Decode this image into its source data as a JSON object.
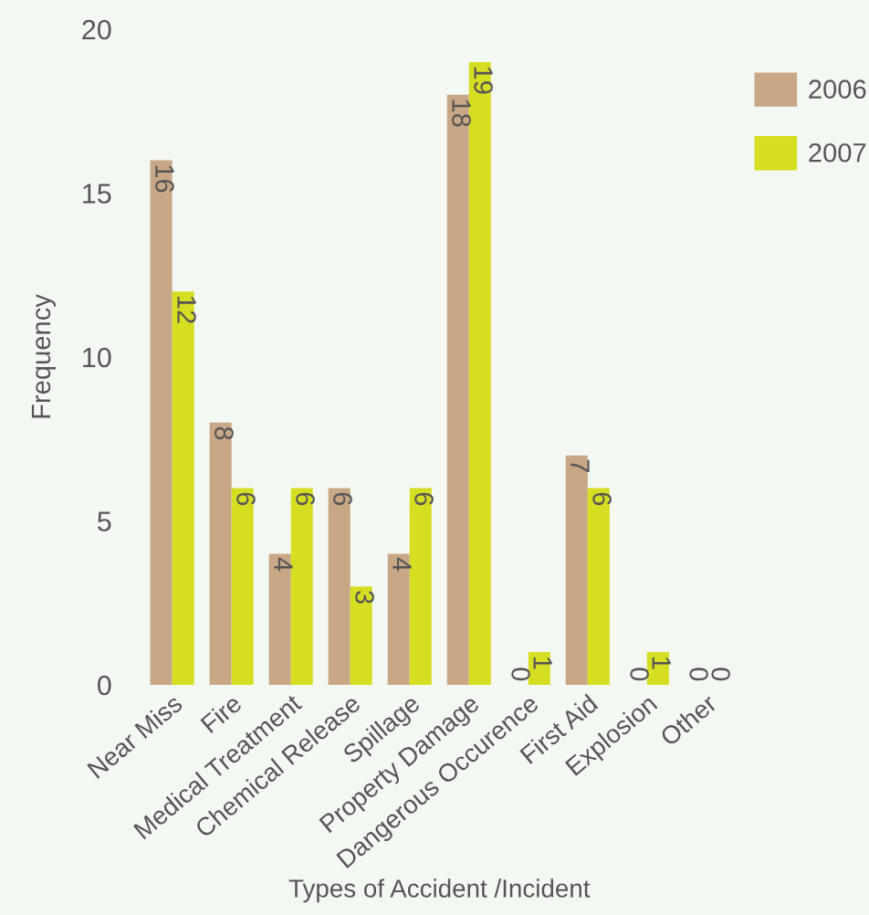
{
  "chart_data": {
    "type": "bar",
    "xlabel": "Types of Accident /Incident",
    "ylabel": "Frequency",
    "categories": [
      "Near Miss",
      "Fire",
      "Medical Treatment",
      "Chemical Release",
      "Spillage",
      "Property Damage",
      "Dangerous Occurence",
      "First Aid",
      "Explosion",
      "Other"
    ],
    "series": [
      {
        "name": "2006",
        "color": "#c8a786",
        "values": [
          16,
          8,
          4,
          6,
          4,
          18,
          0,
          7,
          0,
          0
        ]
      },
      {
        "name": "2007",
        "color": "#d6de22",
        "values": [
          12,
          6,
          6,
          3,
          6,
          19,
          1,
          6,
          1,
          0
        ]
      }
    ],
    "ylim": [
      0,
      20
    ],
    "yticks": [
      0,
      5,
      10,
      15,
      20
    ],
    "data_labels": true,
    "grid": false,
    "legend": "top right"
  }
}
